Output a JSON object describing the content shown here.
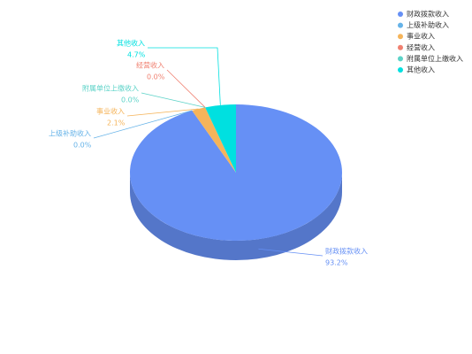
{
  "chart_data": {
    "type": "pie3d",
    "categories": [
      "财政拨款收入",
      "上级补助收入",
      "事业收入",
      "经营收入",
      "附属单位上缴收入",
      "其他收入"
    ],
    "values": [
      93.2,
      0.0,
      2.1,
      0.0,
      0.0,
      4.7
    ],
    "value_labels": [
      "93.2%",
      "0.0%",
      "2.1%",
      "0.0%",
      "0.0%",
      "4.7%"
    ],
    "colors": [
      "#6690f5",
      "#66b3e8",
      "#f5b45a",
      "#f08070",
      "#5dd3c8",
      "#00e0e0"
    ],
    "legend": "top-right"
  }
}
